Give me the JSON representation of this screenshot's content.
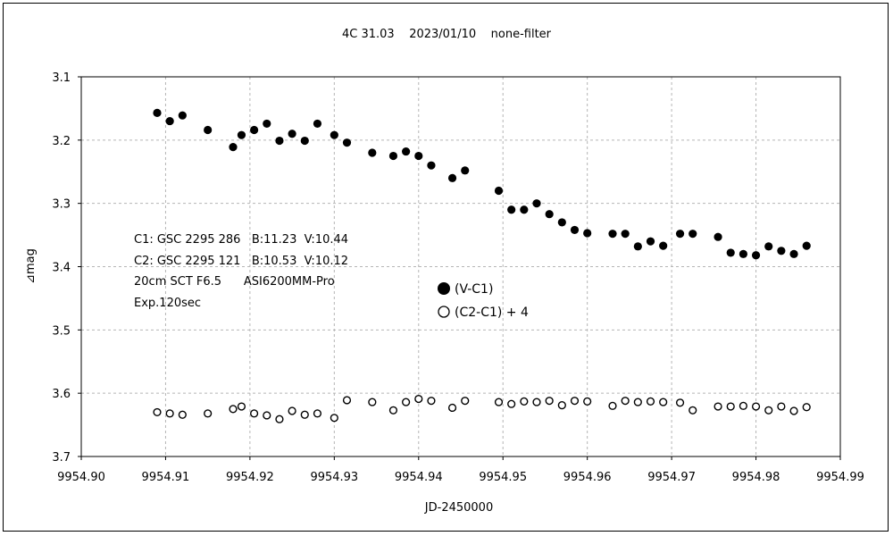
{
  "chart_data": {
    "type": "scatter",
    "title": "4C 31.03    2023/01/10    none-filter",
    "xlabel": "JD-2450000",
    "ylabel": "⊿mag",
    "xlim": [
      9954.9,
      9954.99
    ],
    "ylim": [
      3.1,
      3.7
    ],
    "y_inverted": true,
    "grid": true,
    "x_ticks": [
      "9954.90",
      "9954.91",
      "9954.92",
      "9954.93",
      "9954.94",
      "9954.95",
      "9954.96",
      "9954.97",
      "9954.98",
      "9954.99"
    ],
    "y_ticks": [
      "3.1",
      "3.2",
      "3.3",
      "3.4",
      "3.5",
      "3.6",
      "3.7"
    ],
    "annotations": [
      "C1: GSC 2295 286   B:11.23  V:10.44",
      "C2: GSC 2295 121   B:10.53  V:10.12",
      "20cm SCT F6.5      ASI6200MM-Pro",
      "Exp.120sec"
    ],
    "legend_position": "center",
    "series": [
      {
        "name": "(V-C1)",
        "marker": "filled-circle",
        "color": "#000000",
        "x": [
          9954.909,
          9954.9105,
          9954.912,
          9954.915,
          9954.918,
          9954.919,
          9954.9205,
          9954.922,
          9954.9235,
          9954.925,
          9954.9265,
          9954.928,
          9954.93,
          9954.9315,
          9954.9345,
          9954.937,
          9954.9385,
          9954.94,
          9954.9415,
          9954.944,
          9954.9455,
          9954.9495,
          9954.951,
          9954.9525,
          9954.954,
          9954.9555,
          9954.957,
          9954.9585,
          9954.96,
          9954.963,
          9954.9645,
          9954.966,
          9954.9675,
          9954.969,
          9954.971,
          9954.9725,
          9954.9755,
          9954.977,
          9954.9785,
          9954.98,
          9954.9815,
          9954.983,
          9954.9845,
          9954.986
        ],
        "y": [
          3.157,
          3.17,
          3.161,
          3.184,
          3.211,
          3.192,
          3.184,
          3.174,
          3.201,
          3.19,
          3.201,
          3.174,
          3.192,
          3.204,
          3.22,
          3.225,
          3.218,
          3.225,
          3.24,
          3.26,
          3.248,
          3.28,
          3.31,
          3.31,
          3.3,
          3.317,
          3.33,
          3.342,
          3.347,
          3.348,
          3.348,
          3.368,
          3.36,
          3.367,
          3.348,
          3.348,
          3.353,
          3.378,
          3.38,
          3.382,
          3.368,
          3.375,
          3.38,
          3.367
        ]
      },
      {
        "name": "(C2-C1) + 4",
        "marker": "open-circle",
        "color": "#000000",
        "x": [
          9954.909,
          9954.9105,
          9954.912,
          9954.915,
          9954.918,
          9954.919,
          9954.9205,
          9954.922,
          9954.9235,
          9954.925,
          9954.9265,
          9954.928,
          9954.93,
          9954.9315,
          9954.9345,
          9954.937,
          9954.9385,
          9954.94,
          9954.9415,
          9954.944,
          9954.9455,
          9954.9495,
          9954.951,
          9954.9525,
          9954.954,
          9954.9555,
          9954.957,
          9954.9585,
          9954.96,
          9954.963,
          9954.9645,
          9954.966,
          9954.9675,
          9954.969,
          9954.971,
          9954.9725,
          9954.9755,
          9954.977,
          9954.9785,
          9954.98,
          9954.9815,
          9954.983,
          9954.9845,
          9954.986
        ],
        "y": [
          3.63,
          3.632,
          3.634,
          3.632,
          3.625,
          3.621,
          3.632,
          3.635,
          3.641,
          3.628,
          3.634,
          3.632,
          3.639,
          3.611,
          3.614,
          3.627,
          3.614,
          3.609,
          3.612,
          3.623,
          3.612,
          3.614,
          3.617,
          3.613,
          3.614,
          3.612,
          3.619,
          3.612,
          3.613,
          3.62,
          3.612,
          3.614,
          3.613,
          3.614,
          3.615,
          3.627,
          3.621,
          3.621,
          3.62,
          3.621,
          3.627,
          3.621,
          3.628,
          3.622
        ]
      }
    ]
  }
}
